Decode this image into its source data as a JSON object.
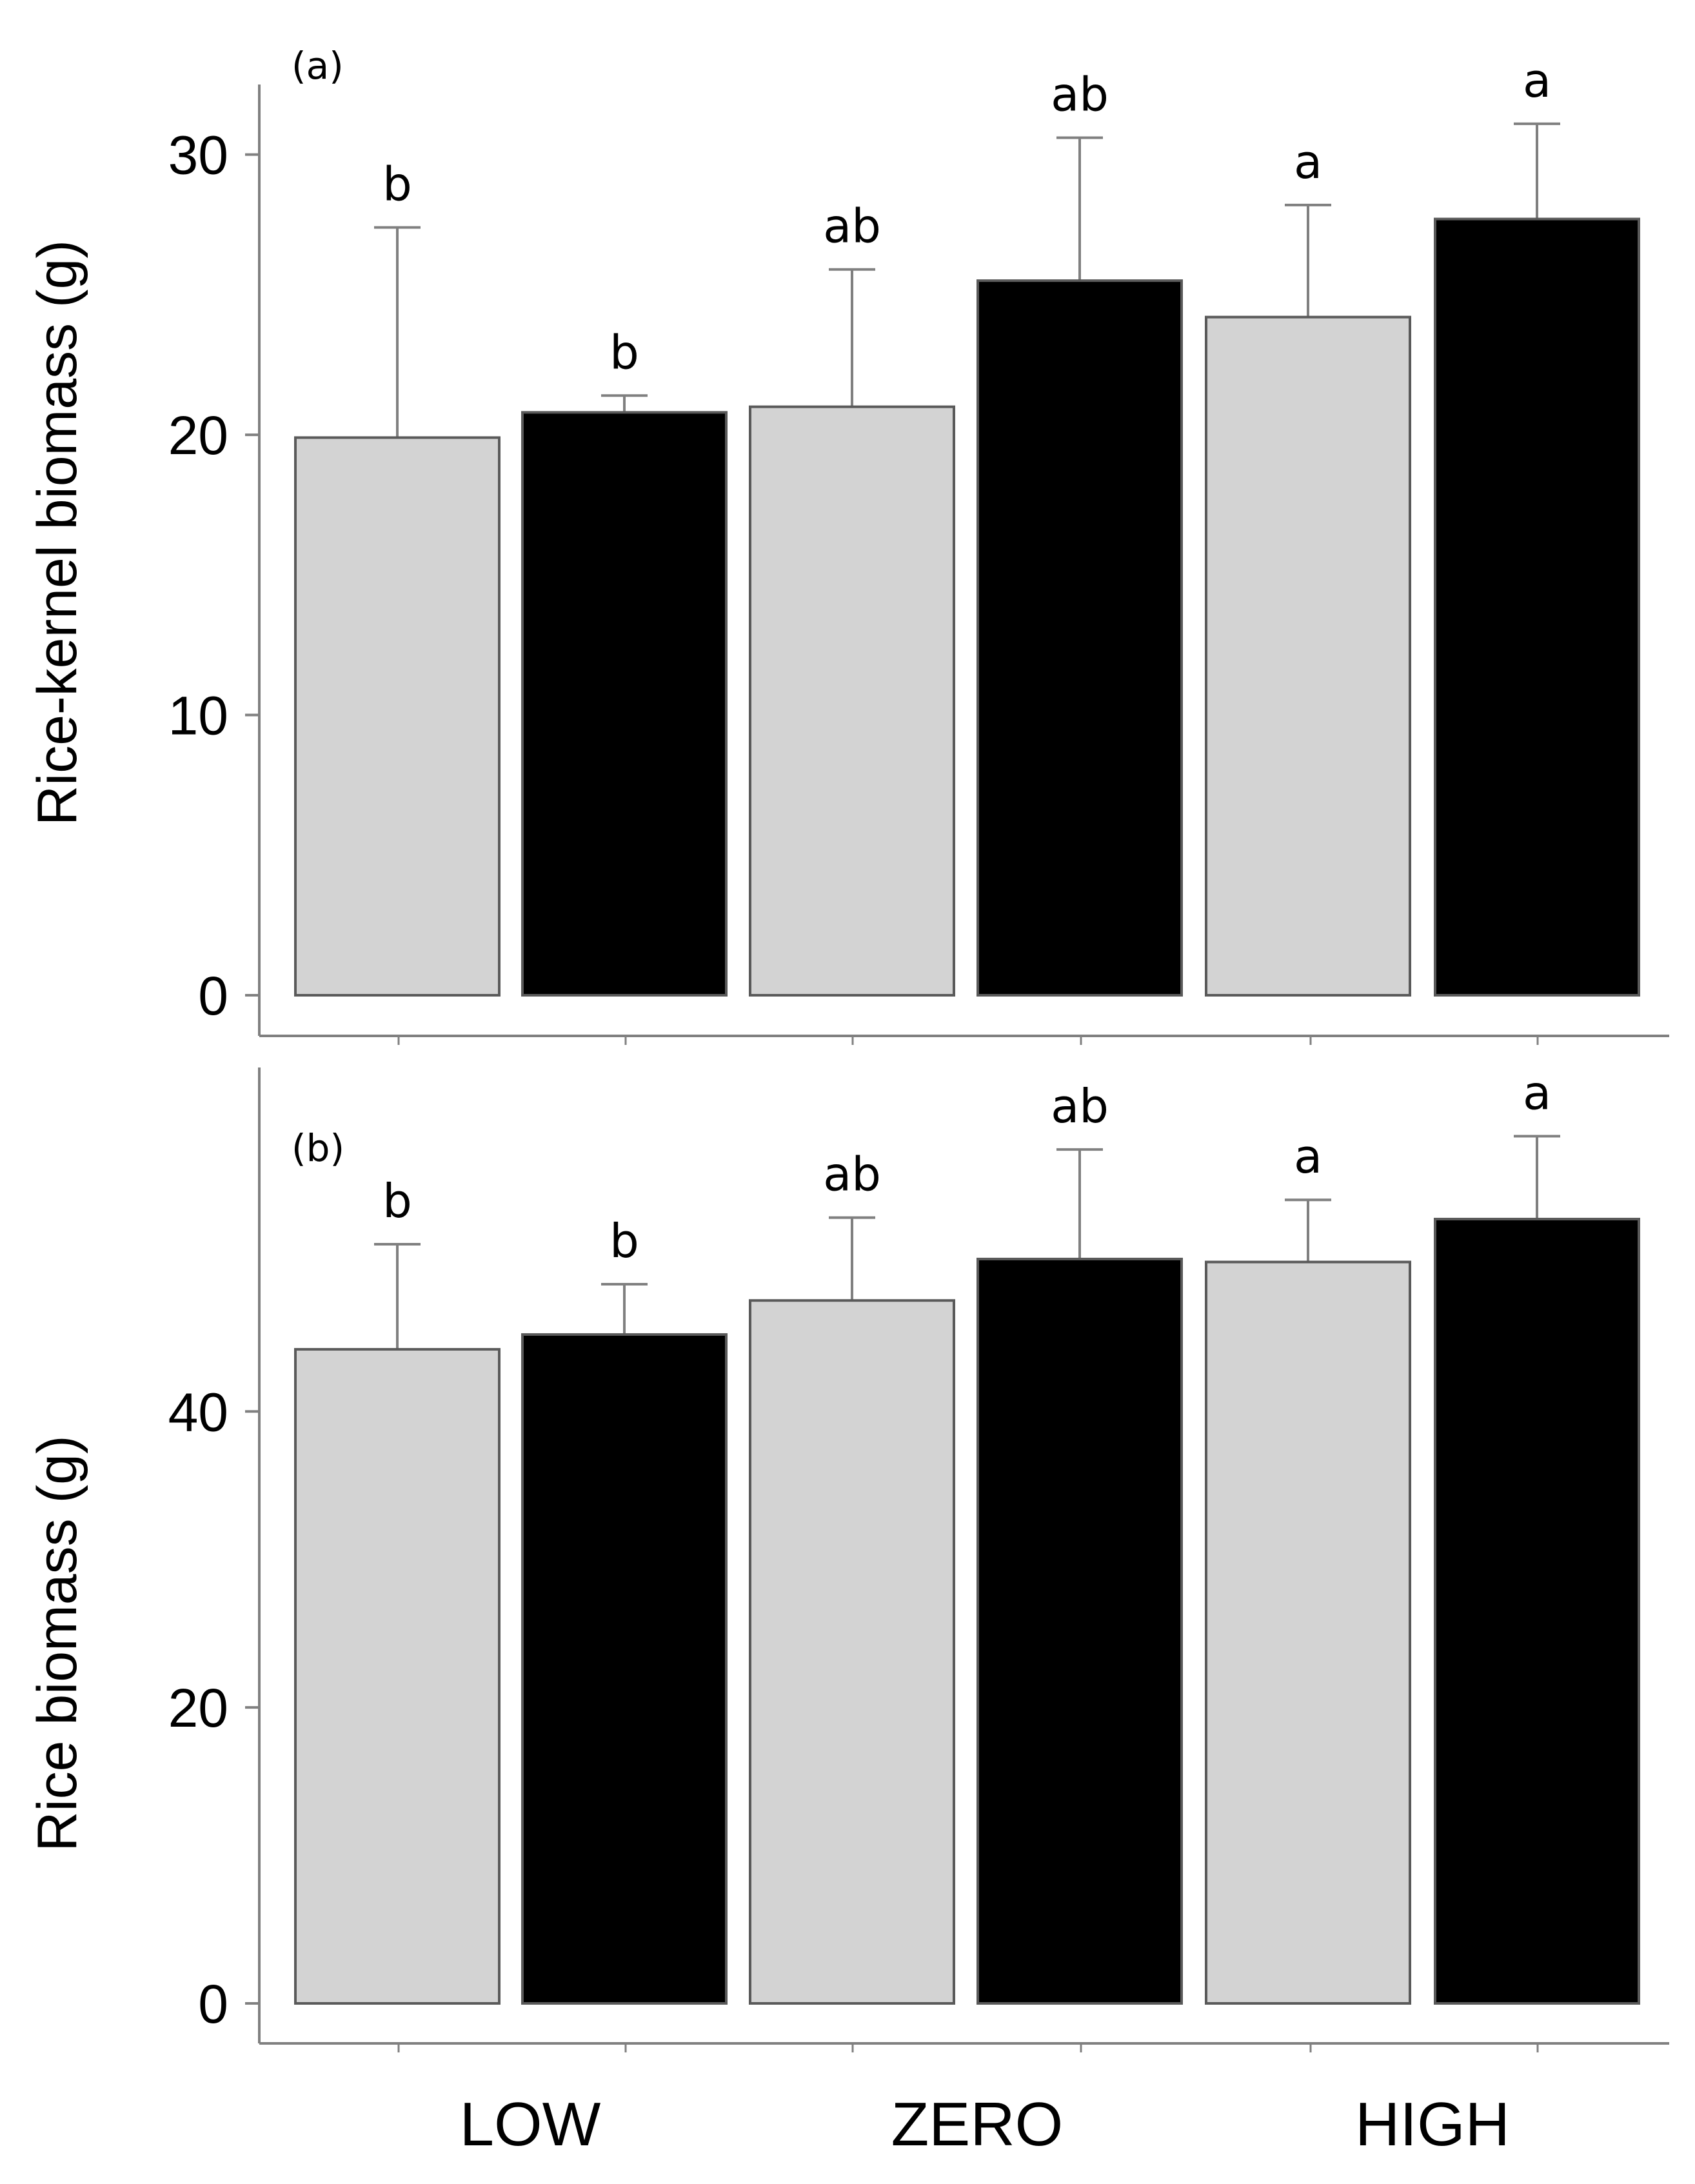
{
  "chart_data": [
    {
      "type": "bar",
      "panel": "(a)",
      "ylabel": "Rice-kernel biomass (g)",
      "xlabel": "",
      "ylim": [
        0,
        32.5
      ],
      "yticks": [
        0,
        10,
        20,
        30
      ],
      "categories": [
        "LOW",
        "ZERO",
        "HIGH"
      ],
      "colors": {
        "grey_series": "#d3d3d3",
        "black_series": "#000000",
        "axis": "#808080",
        "error_bar": "#808080"
      },
      "bars": [
        {
          "category": "LOW",
          "shade": "grey",
          "value": 19.9,
          "error": 7.5,
          "sig": "b"
        },
        {
          "category": "LOW",
          "shade": "black",
          "value": 20.8,
          "error": 0.6,
          "sig": "b"
        },
        {
          "category": "ZERO",
          "shade": "grey",
          "value": 21.0,
          "error": 4.9,
          "sig": "ab"
        },
        {
          "category": "ZERO",
          "shade": "black",
          "value": 25.5,
          "error": 5.1,
          "sig": "ab"
        },
        {
          "category": "HIGH",
          "shade": "grey",
          "value": 24.2,
          "error": 4.0,
          "sig": "a"
        },
        {
          "category": "HIGH",
          "shade": "black",
          "value": 27.7,
          "error": 3.4,
          "sig": "a"
        }
      ]
    },
    {
      "type": "bar",
      "panel": "(b)",
      "ylabel": "Rice biomass (g)",
      "xlabel": "",
      "ylim": [
        0,
        61.5
      ],
      "yticks": [
        0,
        20,
        40
      ],
      "categories": [
        "LOW",
        "ZERO",
        "HIGH"
      ],
      "colors": {
        "grey_series": "#d3d3d3",
        "black_series": "#000000",
        "axis": "#808080",
        "error_bar": "#808080"
      },
      "bars": [
        {
          "category": "LOW",
          "shade": "grey",
          "value": 44.2,
          "error": 7.1,
          "sig": "b"
        },
        {
          "category": "LOW",
          "shade": "black",
          "value": 45.2,
          "error": 3.4,
          "sig": "b"
        },
        {
          "category": "ZERO",
          "shade": "grey",
          "value": 47.5,
          "error": 5.6,
          "sig": "ab"
        },
        {
          "category": "ZERO",
          "shade": "black",
          "value": 50.3,
          "error": 7.4,
          "sig": "ab"
        },
        {
          "category": "HIGH",
          "shade": "grey",
          "value": 50.1,
          "error": 4.2,
          "sig": "a"
        },
        {
          "category": "HIGH",
          "shade": "black",
          "value": 53.0,
          "error": 5.6,
          "sig": "a"
        }
      ]
    }
  ]
}
